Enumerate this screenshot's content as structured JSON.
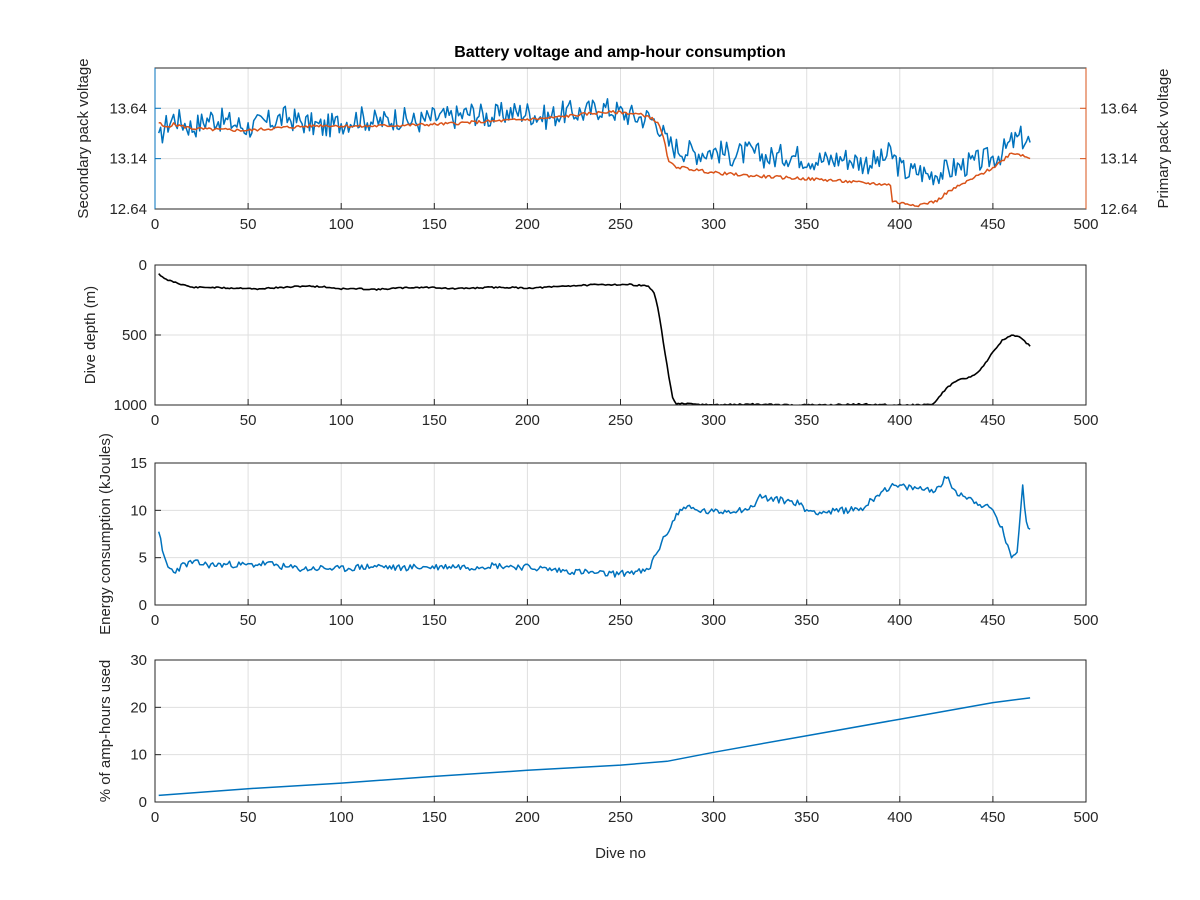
{
  "figure_title": "Battery voltage and amp-hour consumption",
  "colors": {
    "blue": "#0072BD",
    "orange": "#D95319",
    "black": "#000000",
    "axis": "#262626",
    "grid": "#dfdfdf"
  },
  "chart_data": [
    {
      "type": "line",
      "title": "Battery voltage and amp-hour consumption",
      "xlabel": "",
      "ylabel_left": "Secondary pack voltage",
      "ylabel_right": "Primary pack voltage",
      "xlim": [
        0,
        500
      ],
      "xticks": [
        0,
        50,
        100,
        150,
        200,
        250,
        300,
        350,
        400,
        450,
        500
      ],
      "ylim_left": [
        12.64,
        14.04
      ],
      "ylim_right": [
        12.64,
        14.04
      ],
      "yticks_left": [
        "12.64",
        "13.14",
        "13.64"
      ],
      "yticks_right": [
        "12.64",
        "13.14",
        "13.64"
      ],
      "grid": true,
      "series": [
        {
          "name": "",
          "axis": "left",
          "color": "#0072BD",
          "x": [
            2,
            5,
            10,
            15,
            20,
            30,
            40,
            50,
            60,
            70,
            80,
            90,
            100,
            110,
            120,
            130,
            140,
            150,
            160,
            170,
            180,
            190,
            200,
            210,
            220,
            230,
            240,
            250,
            260,
            265,
            270,
            275,
            280,
            290,
            300,
            310,
            320,
            330,
            340,
            350,
            360,
            370,
            380,
            390,
            395,
            400,
            405,
            410,
            415,
            420,
            425,
            430,
            440,
            450,
            455,
            460,
            465,
            470
          ],
          "y": [
            13.3,
            13.45,
            13.55,
            13.5,
            13.45,
            13.55,
            13.5,
            13.45,
            13.5,
            13.55,
            13.5,
            13.45,
            13.5,
            13.55,
            13.5,
            13.55,
            13.5,
            13.55,
            13.55,
            13.6,
            13.55,
            13.6,
            13.6,
            13.55,
            13.6,
            13.6,
            13.65,
            13.6,
            13.55,
            13.55,
            13.5,
            13.3,
            13.25,
            13.2,
            13.22,
            13.18,
            13.2,
            13.15,
            13.18,
            13.15,
            13.12,
            13.15,
            13.1,
            13.12,
            13.2,
            13.05,
            13.0,
            13.02,
            12.98,
            13.0,
            13.02,
            13.05,
            13.1,
            13.15,
            13.2,
            13.3,
            13.35,
            13.3
          ],
          "note_line": "high-frequency oscillation in original"
        },
        {
          "name": "",
          "axis": "right",
          "color": "#D95319",
          "x": [
            2,
            5,
            10,
            20,
            30,
            50,
            70,
            90,
            110,
            130,
            150,
            170,
            190,
            210,
            230,
            240,
            250,
            260,
            265,
            270,
            273,
            276,
            280,
            300,
            320,
            340,
            360,
            380,
            395,
            396,
            400,
            410,
            420,
            425,
            430,
            440,
            450,
            455,
            460,
            465,
            470
          ],
          "y": [
            13.5,
            13.45,
            13.48,
            13.44,
            13.43,
            13.42,
            13.45,
            13.47,
            13.46,
            13.47,
            13.48,
            13.5,
            13.52,
            13.54,
            13.58,
            13.6,
            13.6,
            13.58,
            13.56,
            13.5,
            13.35,
            13.1,
            13.06,
            13.0,
            12.97,
            12.95,
            12.93,
            12.9,
            12.88,
            12.72,
            12.7,
            12.68,
            12.72,
            12.8,
            12.85,
            12.95,
            13.05,
            13.12,
            13.2,
            13.18,
            13.14
          ]
        }
      ]
    },
    {
      "type": "line",
      "title": "",
      "xlabel": "",
      "ylabel": "Dive depth (m)",
      "xlim": [
        0,
        500
      ],
      "xticks": [
        0,
        50,
        100,
        150,
        200,
        250,
        300,
        350,
        400,
        450,
        500
      ],
      "ylim": [
        0,
        1000
      ],
      "y_reversed": true,
      "yticks": [
        "0",
        "500",
        "1000"
      ],
      "grid": true,
      "series": [
        {
          "name": "",
          "color": "#000000",
          "x": [
            2,
            5,
            10,
            20,
            30,
            40,
            50,
            55,
            60,
            70,
            80,
            90,
            100,
            110,
            120,
            130,
            140,
            150,
            160,
            170,
            180,
            190,
            200,
            210,
            220,
            230,
            240,
            250,
            255,
            260,
            265,
            268,
            270,
            273,
            276,
            278,
            280,
            300,
            320,
            340,
            360,
            380,
            400,
            410,
            418,
            420,
            425,
            430,
            440,
            445,
            450,
            455,
            460,
            465,
            470
          ],
          "y": [
            60,
            100,
            120,
            160,
            160,
            165,
            165,
            175,
            165,
            160,
            150,
            155,
            170,
            170,
            175,
            165,
            160,
            160,
            170,
            165,
            160,
            160,
            165,
            160,
            150,
            145,
            140,
            140,
            140,
            145,
            150,
            200,
            300,
            550,
            800,
            950,
            990,
            1000,
            995,
            1000,
            1000,
            995,
            1000,
            1000,
            995,
            960,
            880,
            830,
            790,
            720,
            620,
            540,
            500,
            520,
            580
          ]
        }
      ]
    },
    {
      "type": "line",
      "title": "",
      "xlabel": "",
      "ylabel": "Energy consumption (kJoules)",
      "xlim": [
        0,
        500
      ],
      "xticks": [
        0,
        50,
        100,
        150,
        200,
        250,
        300,
        350,
        400,
        450,
        500
      ],
      "ylim": [
        0,
        15
      ],
      "yticks": [
        "0",
        "5",
        "10",
        "15"
      ],
      "grid": true,
      "series": [
        {
          "name": "",
          "color": "#0072BD",
          "x": [
            2,
            4,
            7,
            10,
            15,
            20,
            30,
            40,
            50,
            60,
            70,
            80,
            90,
            100,
            110,
            120,
            130,
            140,
            150,
            160,
            170,
            180,
            190,
            200,
            210,
            220,
            230,
            240,
            250,
            255,
            260,
            265,
            268,
            272,
            276,
            280,
            285,
            290,
            300,
            310,
            320,
            325,
            330,
            340,
            345,
            350,
            360,
            370,
            380,
            390,
            395,
            400,
            410,
            420,
            425,
            430,
            440,
            445,
            450,
            455,
            458,
            460,
            463,
            466,
            468,
            470
          ],
          "y": [
            8,
            5.5,
            4,
            3.5,
            4.2,
            4.5,
            4.2,
            4.3,
            4.2,
            4.4,
            4.0,
            3.8,
            3.9,
            3.8,
            4.0,
            4.1,
            3.9,
            4.0,
            4.0,
            4.1,
            4.0,
            4.2,
            4.1,
            4.0,
            3.8,
            3.6,
            3.5,
            3.3,
            3.3,
            3.5,
            3.5,
            3.6,
            5.0,
            6.5,
            8.0,
            9.5,
            10.5,
            10.0,
            9.8,
            10.0,
            10.2,
            11.5,
            11.2,
            11.0,
            10.8,
            10.0,
            9.8,
            10.0,
            10.2,
            12.0,
            12.5,
            12.5,
            12.3,
            12.2,
            13.5,
            12.0,
            11.0,
            10.5,
            10.0,
            8.0,
            6.0,
            5.2,
            5.8,
            12.5,
            8.5,
            8.0
          ]
        }
      ]
    },
    {
      "type": "line",
      "title": "",
      "xlabel": "Dive no",
      "ylabel": "% of amp-hours used",
      "xlim": [
        0,
        500
      ],
      "xticks": [
        0,
        50,
        100,
        150,
        200,
        250,
        300,
        350,
        400,
        450,
        500
      ],
      "ylim": [
        0,
        30
      ],
      "yticks": [
        "0",
        "10",
        "20",
        "30"
      ],
      "grid": true,
      "series": [
        {
          "name": "",
          "color": "#0072BD",
          "x": [
            2,
            50,
            100,
            150,
            200,
            250,
            275,
            300,
            350,
            400,
            450,
            470
          ],
          "y": [
            1.4,
            2.8,
            4.0,
            5.4,
            6.7,
            7.8,
            8.6,
            10.5,
            14.0,
            17.5,
            21.0,
            22.0
          ]
        }
      ]
    }
  ]
}
